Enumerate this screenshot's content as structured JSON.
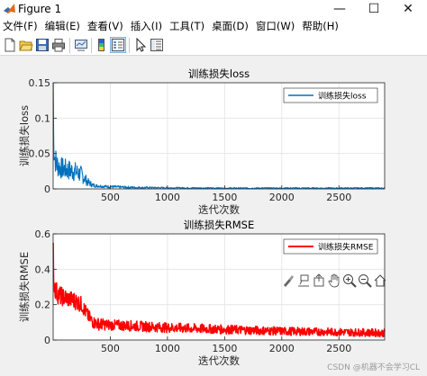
{
  "window": {
    "title": "Figure 1",
    "minimize": "—",
    "maximize": "☐",
    "close": "✕"
  },
  "menu": [
    "文件(F)",
    "编辑(E)",
    "查看(V)",
    "插入(I)",
    "工具(T)",
    "桌面(D)",
    "窗口(W)",
    "帮助(H)"
  ],
  "toolbar_icons": [
    "new-figure-icon",
    "open-file-icon",
    "save-icon",
    "print-icon",
    "link-plot-icon",
    "insert-colorbar-icon",
    "insert-legend-icon",
    "edit-plot-icon",
    "property-inspector-icon"
  ],
  "axes_toolbar_icons": [
    "brush-icon",
    "data-tips-icon",
    "export-icon",
    "pan-icon",
    "zoom-in-icon",
    "zoom-out-icon",
    "home-icon"
  ],
  "watermark": "CSDN @机器不会学习CL",
  "colors": {
    "loss": "#0072bd",
    "rmse": "#ff0000"
  },
  "chart_data": [
    {
      "type": "line",
      "title": "训练损失loss",
      "xlabel": "迭代次数",
      "ylabel": "训练损失loss",
      "xlim": [
        0,
        2900
      ],
      "ylim": [
        0,
        0.15
      ],
      "xticks": [
        500,
        1000,
        1500,
        2000,
        2500
      ],
      "xtick_labels": [
        "500",
        "1000",
        "1500",
        "2000",
        "2500"
      ],
      "yticks": [
        0,
        0.05,
        0.1,
        0.15
      ],
      "ytick_labels": [
        "0",
        "0.05",
        "0.1",
        "0.15"
      ],
      "grid": true,
      "legend_position": "top-right",
      "series": [
        {
          "name": "训练损失loss",
          "color": "#0072bd",
          "x": [
            1,
            5,
            15,
            30,
            60,
            100,
            150,
            200,
            250,
            300,
            350,
            400,
            500,
            700,
            1000,
            1500,
            2000,
            2500,
            2900
          ],
          "y": [
            0.15,
            0.06,
            0.045,
            0.035,
            0.03,
            0.028,
            0.026,
            0.024,
            0.02,
            0.01,
            0.005,
            0.004,
            0.003,
            0.002,
            0.0015,
            0.001,
            0.001,
            0.001,
            0.001
          ],
          "noise": [
            0,
            0.02,
            0.02,
            0.018,
            0.016,
            0.015,
            0.015,
            0.014,
            0.012,
            0.006,
            0.003,
            0.002,
            0.002,
            0.0015,
            0.001,
            0.001,
            0.001,
            0.001,
            0.001
          ]
        }
      ]
    },
    {
      "type": "line",
      "title": "训练损失RMSE",
      "xlabel": "迭代次数",
      "ylabel": "训练损失RMSE",
      "xlim": [
        0,
        2900
      ],
      "ylim": [
        0,
        0.6
      ],
      "xticks": [
        500,
        1000,
        1500,
        2000,
        2500
      ],
      "xtick_labels": [
        "500",
        "1000",
        "1500",
        "2000",
        "2500"
      ],
      "yticks": [
        0,
        0.2,
        0.4,
        0.6
      ],
      "ytick_labels": [
        "0",
        "0.2",
        "0.4",
        "0.6"
      ],
      "grid": true,
      "legend_position": "top-right",
      "series": [
        {
          "name": "训练损失RMSE",
          "color": "#ff0000",
          "x": [
            1,
            5,
            15,
            30,
            60,
            100,
            150,
            200,
            250,
            300,
            350,
            400,
            500,
            700,
            1000,
            1500,
            2000,
            2500,
            2900
          ],
          "y": [
            0.55,
            0.33,
            0.3,
            0.27,
            0.25,
            0.24,
            0.23,
            0.22,
            0.2,
            0.14,
            0.1,
            0.09,
            0.085,
            0.08,
            0.07,
            0.06,
            0.05,
            0.045,
            0.04
          ],
          "noise": [
            0,
            0.06,
            0.06,
            0.06,
            0.055,
            0.05,
            0.05,
            0.05,
            0.045,
            0.04,
            0.035,
            0.035,
            0.03,
            0.03,
            0.028,
            0.026,
            0.024,
            0.022,
            0.022
          ]
        }
      ]
    }
  ]
}
